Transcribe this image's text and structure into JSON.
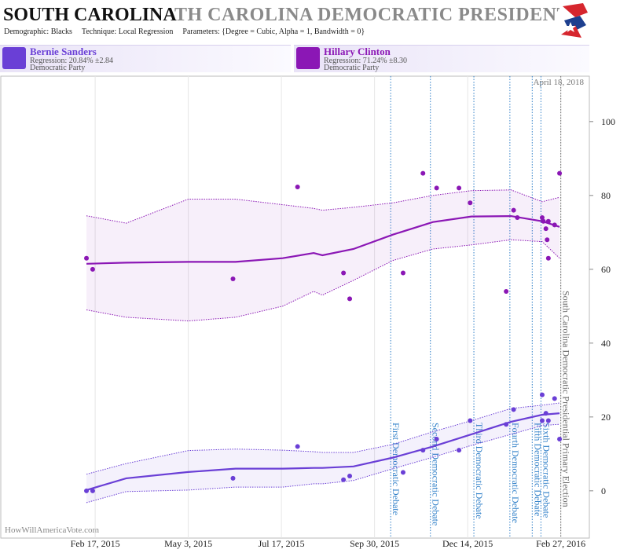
{
  "header": {
    "title": "SOUTH CAROLINA",
    "title_scroll": "TH CAROLINA DEMOCRATIC PRESIDENTIAL P",
    "subtitle": [
      "Demographic: Blacks",
      "Technique: Local Regression",
      "Parameters: {Degree = Cubic, Alpha = 1, Bandwidth = 0}"
    ]
  },
  "chart_data": {
    "type": "scatter",
    "date_stamp": "April 18, 2018",
    "watermark": "HowWillAmericaVote.com",
    "xlim": [
      "2014-12-03",
      "2016-03-21"
    ],
    "xticks": [
      {
        "value": "2015-02-17",
        "label": "Feb 17, 2015"
      },
      {
        "value": "2015-05-03",
        "label": "May 3, 2015"
      },
      {
        "value": "2015-07-17",
        "label": "Jul 17, 2015"
      },
      {
        "value": "2015-09-30",
        "label": "Sep 30, 2015"
      },
      {
        "value": "2015-12-14",
        "label": "Dec 14, 2015"
      },
      {
        "value": "2016-02-27",
        "label": "Feb 27, 2016"
      }
    ],
    "ylim": [
      -12.8,
      112.3
    ],
    "yticks": [
      0,
      20,
      40,
      60,
      80,
      100
    ],
    "xgrid": true,
    "events": [
      {
        "date": "2015-10-13",
        "label": "First Democratic Debate",
        "color": "#2f7fc8"
      },
      {
        "date": "2015-11-14",
        "label": "Second Democratic Debate",
        "color": "#2f7fc8"
      },
      {
        "date": "2015-12-19",
        "label": "Third Democratic Debate",
        "color": "#2f7fc8"
      },
      {
        "date": "2016-01-17",
        "label": "Fourth Democratic Debate",
        "color": "#2f7fc8"
      },
      {
        "date": "2016-02-04",
        "label": "Fifth Democratic Debate",
        "color": "#2f7fc8"
      },
      {
        "date": "2016-02-11",
        "label": "Sixth Democratic Debate",
        "color": "#2f7fc8"
      },
      {
        "date": "2016-02-27",
        "label": "South Carolina Democratic Presidential Primary Election",
        "color": "#666666"
      }
    ],
    "series": [
      {
        "name": "Bernie Sanders",
        "regression_label": "Regression: 20.84% ±2.84",
        "party": "Democratic Party",
        "color": "#6a3fd6",
        "x": [
          "2015-02-10",
          "2015-02-15",
          "2015-06-08",
          "2015-07-30",
          "2015-09-05",
          "2015-09-10",
          "2015-10-23",
          "2015-11-08",
          "2015-11-19",
          "2015-12-07",
          "2015-12-16",
          "2016-01-14",
          "2016-01-20",
          "2016-02-12",
          "2016-02-12",
          "2016-02-15",
          "2016-02-17",
          "2016-02-22",
          "2016-02-26"
        ],
        "values": [
          0,
          0,
          3.4,
          12,
          3,
          4,
          5,
          11,
          14,
          11,
          19,
          18,
          22,
          26,
          19,
          21,
          19,
          25,
          14
        ],
        "regression": {
          "x": [
            "2015-02-10",
            "2015-03-14",
            "2015-05-03",
            "2015-06-10",
            "2015-07-18",
            "2015-08-12",
            "2015-08-19",
            "2015-09-13",
            "2015-10-15",
            "2015-11-16",
            "2015-12-17",
            "2016-01-18",
            "2016-02-12",
            "2016-02-26"
          ],
          "values": [
            0.2,
            3.4,
            5.1,
            6,
            6,
            6.2,
            6.2,
            6.6,
            9,
            12,
            15.3,
            18.7,
            20.6,
            21
          ],
          "upper": [
            4.5,
            7.4,
            10.9,
            11.3,
            11,
            10.6,
            10.4,
            10.4,
            12.6,
            16,
            19,
            22.3,
            23.2,
            23.8
          ],
          "lower": [
            -3.2,
            -0.2,
            0.2,
            1,
            1,
            1.9,
            1.9,
            2.8,
            6,
            9.1,
            12.3,
            15.3,
            17.7,
            18
          ]
        }
      },
      {
        "name": "Hillary Clinton",
        "regression_label": "Regression: 71.24% ±8.30",
        "party": "Democratic Party",
        "color": "#8b17b5",
        "x": [
          "2015-02-10",
          "2015-02-15",
          "2015-06-08",
          "2015-07-30",
          "2015-09-05",
          "2015-09-10",
          "2015-10-23",
          "2015-11-08",
          "2015-11-19",
          "2015-12-07",
          "2015-12-16",
          "2016-01-14",
          "2016-01-20",
          "2016-01-23",
          "2016-02-12",
          "2016-02-13",
          "2016-02-15",
          "2016-02-16",
          "2016-02-17",
          "2016-02-17",
          "2016-02-22",
          "2016-02-26"
        ],
        "values": [
          63,
          60,
          57.4,
          82.3,
          59,
          52,
          59,
          86,
          82,
          82,
          78,
          54,
          76,
          74,
          74,
          73,
          71,
          68,
          63,
          73,
          72,
          86
        ],
        "regression": {
          "x": [
            "2015-02-10",
            "2015-03-14",
            "2015-05-03",
            "2015-06-10",
            "2015-07-18",
            "2015-08-12",
            "2015-08-19",
            "2015-09-13",
            "2015-10-15",
            "2015-11-16",
            "2015-12-17",
            "2016-01-18",
            "2016-02-12",
            "2016-02-26"
          ],
          "values": [
            61.5,
            61.8,
            62,
            62,
            63,
            64.4,
            63.8,
            65.5,
            69.4,
            72.8,
            74.3,
            74.4,
            73,
            71.5
          ],
          "upper": [
            74.5,
            72.5,
            79,
            79,
            77.5,
            76.5,
            76,
            76.8,
            78,
            80,
            81.3,
            81.5,
            78.3,
            79.5
          ],
          "lower": [
            49,
            47,
            46,
            47,
            50,
            54,
            53,
            57,
            62.4,
            65.5,
            66.6,
            68,
            67.5,
            63
          ]
        }
      }
    ]
  }
}
